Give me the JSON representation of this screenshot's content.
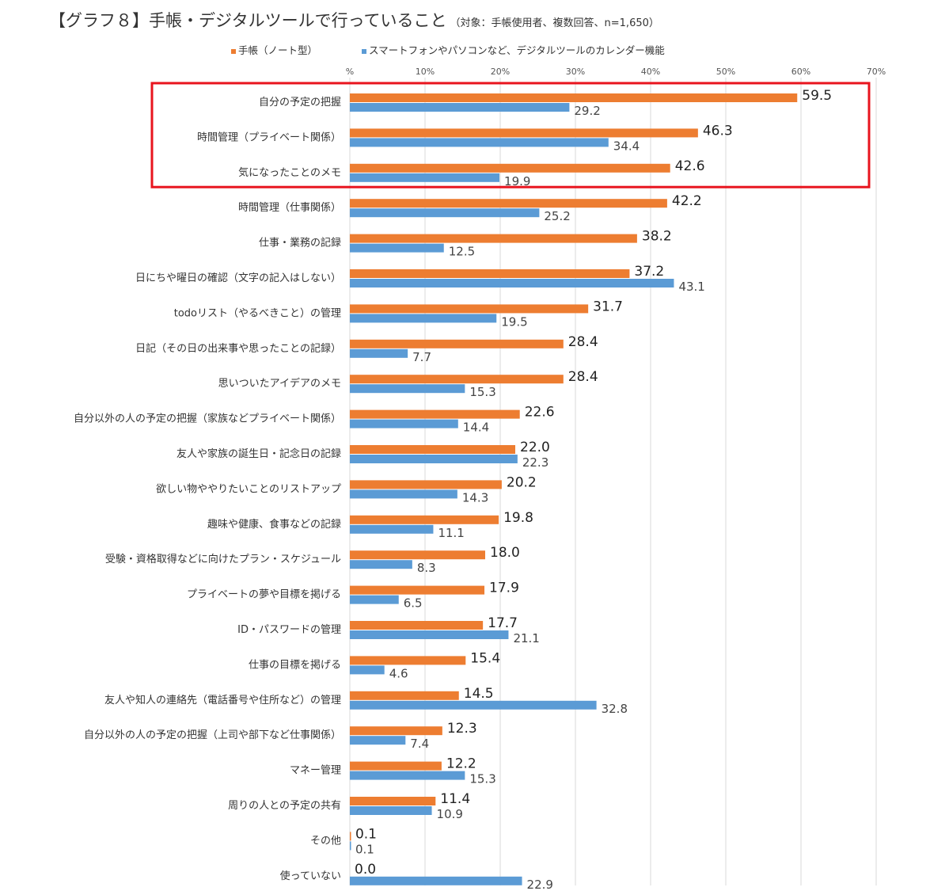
{
  "title": "【グラフ８】手帳・デジタルツールで行っていること",
  "subtitle": "（対象：手帳使用者、複数回答、n=1,650）",
  "colors": {
    "notebook": "#ED7D31",
    "digital": "#5B9BD5",
    "highlight": "#E8141E",
    "grid": "#D9D9D9",
    "text": "#333333"
  },
  "chart_data": {
    "type": "bar",
    "orientation": "horizontal",
    "title": "【グラフ８】手帳・デジタルツールで行っていること",
    "subtitle": "（対象：手帳使用者、複数回答、n=1,650）",
    "x_ticks": [
      "%",
      "10%",
      "20%",
      "30%",
      "40%",
      "50%",
      "60%",
      "70%"
    ],
    "xlim": [
      0,
      70
    ],
    "grid": true,
    "legend_position": "top",
    "highlighted_categories": [
      "自分の予定の把握",
      "時間管理（プライベート関係）",
      "気になったことのメモ"
    ],
    "categories": [
      "自分の予定の把握",
      "時間管理（プライベート関係）",
      "気になったことのメモ",
      "時間管理（仕事関係）",
      "仕事・業務の記録",
      "日にちや曜日の確認（文字の記入はしない）",
      "todoリスト（やるべきこと）の管理",
      "日記（その日の出来事や思ったことの記録）",
      "思いついたアイデアのメモ",
      "自分以外の人の予定の把握（家族などプライベート関係）",
      "友人や家族の誕生日・記念日の記録",
      "欲しい物ややりたいことのリストアップ",
      "趣味や健康、食事などの記録",
      "受験・資格取得などに向けたプラン・スケジュール",
      "プライベートの夢や目標を掲げる",
      "ID・パスワードの管理",
      "仕事の目標を掲げる",
      "友人や知人の連絡先（電話番号や住所など）の管理",
      "自分以外の人の予定の把握（上司や部下など仕事関係）",
      "マネー管理",
      "周りの人との予定の共有",
      "その他",
      "使っていない"
    ],
    "series": [
      {
        "name": "手帳（ノート型）",
        "color": "#ED7D31",
        "values": [
          59.5,
          46.3,
          42.6,
          42.2,
          38.2,
          37.2,
          31.7,
          28.4,
          28.4,
          22.6,
          22.0,
          20.2,
          19.8,
          18.0,
          17.9,
          17.7,
          15.4,
          14.5,
          12.3,
          12.2,
          11.4,
          0.1,
          0.0
        ],
        "labels": [
          "59.5",
          "46.3",
          "42.6",
          "42.2",
          "38.2",
          "37.2",
          "31.7",
          "28.4",
          "28.4",
          "22.6",
          "22.0",
          "20.2",
          "19.8",
          "18.0",
          "17.9",
          "17.7",
          "15.4",
          "14.5",
          "12.3",
          "12.2",
          "11.4",
          "0.1",
          "0.0"
        ]
      },
      {
        "name": "スマートフォンやパソコンなど、デジタルツールのカレンダー機能",
        "color": "#5B9BD5",
        "values": [
          29.2,
          34.4,
          19.9,
          25.2,
          12.5,
          43.1,
          19.5,
          7.7,
          15.3,
          14.4,
          22.3,
          14.3,
          11.1,
          8.3,
          6.5,
          21.1,
          4.6,
          32.8,
          7.4,
          15.3,
          10.9,
          0.1,
          22.9
        ],
        "labels": [
          "29.2",
          "34.4",
          "19.9",
          "25.2",
          "12.5",
          "43.1",
          "19.5",
          "7.7",
          "15.3",
          "14.4",
          "22.3",
          "14.3",
          "11.1",
          "8.3",
          "6.5",
          "21.1",
          "4.6",
          "32.8",
          "7.4",
          "15.3",
          "10.9",
          "0.1",
          "22.9"
        ]
      }
    ]
  }
}
